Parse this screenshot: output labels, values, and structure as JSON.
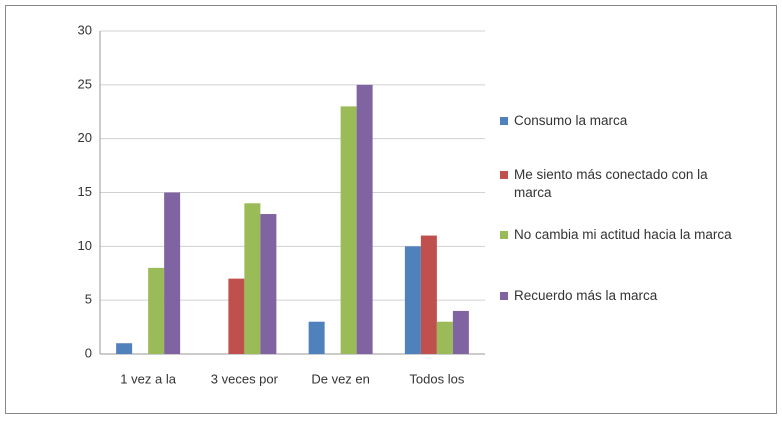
{
  "chart_data": {
    "type": "bar",
    "categories": [
      "1 vez a la",
      "3 veces por",
      "De vez en",
      "Todos los"
    ],
    "series": [
      {
        "name": "Consumo la marca",
        "color": "#4f81bd",
        "values": [
          1,
          0,
          3,
          10
        ]
      },
      {
        "name": "Me siento más conectado con la marca",
        "color": "#c0504d",
        "values": [
          0,
          7,
          0,
          11
        ]
      },
      {
        "name": "No cambia mi actitud hacia la marca",
        "color": "#9bbb59",
        "values": [
          8,
          14,
          23,
          3
        ]
      },
      {
        "name": "Recuerdo más la marca",
        "color": "#8064a2",
        "values": [
          15,
          13,
          25,
          4
        ]
      }
    ],
    "ylim": [
      0,
      30
    ],
    "yticks": [
      0,
      5,
      10,
      15,
      20,
      25,
      30
    ],
    "grid": true,
    "legend": "right"
  }
}
